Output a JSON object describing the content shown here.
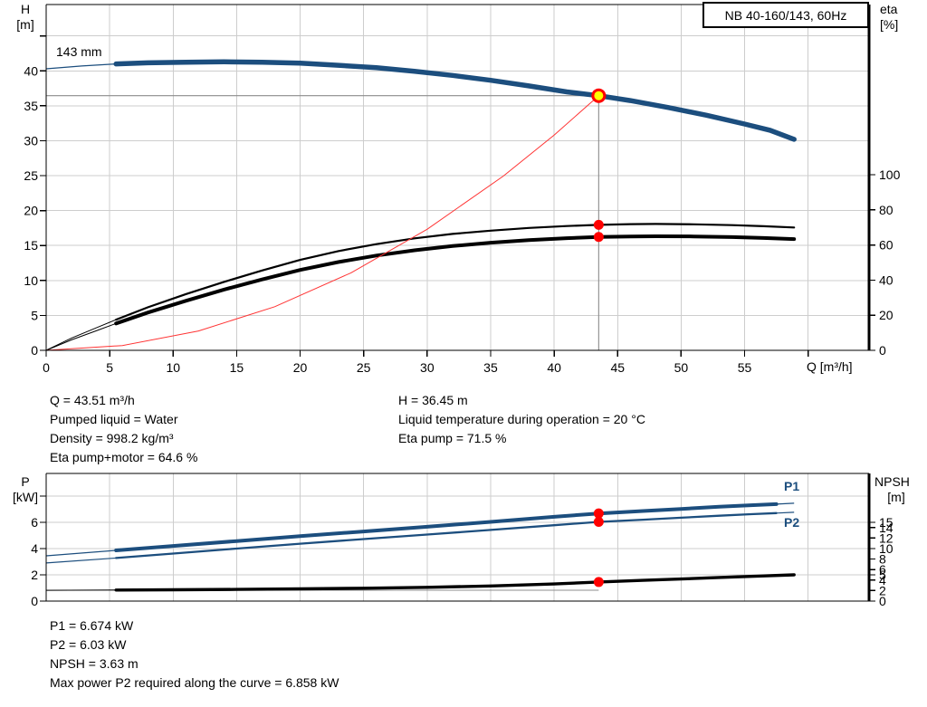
{
  "title_box": {
    "label": "NB 40-160/143, 60Hz"
  },
  "colors": {
    "blue": "#1c4e7e",
    "red": "#ff3333",
    "marker_red": "#ff0000",
    "marker_yellow": "#ffff00",
    "black": "#000000",
    "grid": "#cdcdcd",
    "crosshair": "#8c8c8c"
  },
  "chart_data": [
    {
      "type": "line",
      "name": "qh-efficiency-chart",
      "impeller_label": "143 mm",
      "x_axis": {
        "unit": "Q [m³/h]",
        "min": 0,
        "max": 64.8,
        "ticks": [
          0,
          5,
          10,
          15,
          20,
          25,
          30,
          35,
          40,
          45,
          50,
          55,
          60
        ],
        "labeled": [
          0,
          5,
          10,
          15,
          20,
          25,
          30,
          35,
          40,
          45,
          50,
          55
        ],
        "grid": [
          5,
          10,
          15,
          20,
          25,
          30,
          35,
          40,
          45,
          50,
          55,
          60
        ]
      },
      "left_axis": {
        "title": [
          "H",
          "[m]"
        ],
        "min": 0,
        "max": 49.5,
        "ticks": [
          0,
          5,
          10,
          15,
          20,
          25,
          30,
          35,
          40,
          45
        ],
        "labeled": [
          0,
          5,
          10,
          15,
          20,
          25,
          30,
          35,
          40
        ],
        "grid": [
          5,
          10,
          15,
          20,
          25,
          30,
          35,
          40,
          45
        ]
      },
      "right_axis": {
        "title": [
          "eta",
          "[%]"
        ],
        "min": 0,
        "max": 197,
        "ticks": [
          0,
          20,
          40,
          60,
          80,
          100
        ],
        "labeled": [
          0,
          20,
          40,
          60,
          80,
          100
        ],
        "grid": []
      },
      "series": [
        {
          "name": "head-curve",
          "color": "blue",
          "axis": "left",
          "thin_width": 1.2,
          "thick_width": 5.5,
          "thick_from": 5.5,
          "thick_to": 58.9,
          "points": [
            [
              0,
              40.3
            ],
            [
              2.8,
              40.7
            ],
            [
              5.5,
              41.0
            ],
            [
              8,
              41.15
            ],
            [
              11,
              41.25
            ],
            [
              14,
              41.3
            ],
            [
              17,
              41.25
            ],
            [
              20,
              41.1
            ],
            [
              23,
              40.8
            ],
            [
              26,
              40.45
            ],
            [
              29,
              39.95
            ],
            [
              32,
              39.35
            ],
            [
              35,
              38.65
            ],
            [
              38,
              37.85
            ],
            [
              41,
              37.0
            ],
            [
              43.51,
              36.45
            ],
            [
              46,
              35.75
            ],
            [
              49,
              34.75
            ],
            [
              52,
              33.65
            ],
            [
              55,
              32.4
            ],
            [
              57,
              31.5
            ],
            [
              58.9,
              30.2
            ]
          ]
        },
        {
          "name": "eta-pump-curve",
          "color": "black",
          "axis": "right",
          "thin_width": 1,
          "thick_width": 2.2,
          "thick_from": 5.5,
          "thick_to": 58.9,
          "points": [
            [
              0,
              0
            ],
            [
              2,
              7
            ],
            [
              4,
              13
            ],
            [
              5.5,
              17.5
            ],
            [
              8,
              24.5
            ],
            [
              11,
              32
            ],
            [
              14,
              39
            ],
            [
              17,
              45.5
            ],
            [
              20,
              51.5
            ],
            [
              23,
              56.5
            ],
            [
              26,
              60.5
            ],
            [
              29,
              63.8
            ],
            [
              32,
              66.3
            ],
            [
              35,
              68.2
            ],
            [
              38,
              69.7
            ],
            [
              41,
              70.8
            ],
            [
              43.51,
              71.5
            ],
            [
              46,
              71.9
            ],
            [
              48,
              72
            ],
            [
              51,
              71.8
            ],
            [
              54,
              71.3
            ],
            [
              56.5,
              70.7
            ],
            [
              58.9,
              70
            ]
          ]
        },
        {
          "name": "eta-pump-motor-curve",
          "color": "black",
          "axis": "right",
          "thin_width": 1,
          "thick_width": 4,
          "thick_from": 5.5,
          "thick_to": 58.9,
          "points": [
            [
              0,
              0
            ],
            [
              2,
              6
            ],
            [
              4,
              11.3
            ],
            [
              5.5,
              15.3
            ],
            [
              8,
              21.5
            ],
            [
              11,
              28.2
            ],
            [
              14,
              34.6
            ],
            [
              17,
              40.4
            ],
            [
              20,
              45.8
            ],
            [
              23,
              50.3
            ],
            [
              26,
              54
            ],
            [
              29,
              57
            ],
            [
              32,
              59.4
            ],
            [
              35,
              61.3
            ],
            [
              38,
              62.8
            ],
            [
              41,
              63.9
            ],
            [
              43.51,
              64.6
            ],
            [
              46,
              64.9
            ],
            [
              48,
              65
            ],
            [
              51,
              64.9
            ],
            [
              54,
              64.5
            ],
            [
              56.5,
              64
            ],
            [
              58.9,
              63.4
            ]
          ]
        },
        {
          "name": "system-curve",
          "color": "red",
          "axis": "left",
          "thin_width": 1,
          "thick_width": 0,
          "thick_from": 0,
          "thick_to": 0,
          "points": [
            [
              0,
              0
            ],
            [
              6,
              0.69
            ],
            [
              12,
              2.77
            ],
            [
              18,
              6.24
            ],
            [
              24,
              11.09
            ],
            [
              30,
              17.33
            ],
            [
              36,
              24.95
            ],
            [
              40,
              30.8
            ],
            [
              43.51,
              36.45
            ]
          ]
        }
      ],
      "reference_lines": [
        {
          "axis": "left",
          "points": [
            [
              0,
              36.45
            ],
            [
              43.51,
              36.45
            ]
          ]
        },
        {
          "axis": "left",
          "points": [
            [
              43.51,
              36.45
            ],
            [
              43.51,
              0
            ]
          ]
        }
      ],
      "markers": [
        {
          "name": "operating-point-marker",
          "q": 43.51,
          "value": 36.45,
          "axis": "left",
          "style": "ring-yellow"
        },
        {
          "name": "eta-pump-duty-dot",
          "q": 43.51,
          "value": 71.5,
          "axis": "right",
          "style": "dot"
        },
        {
          "name": "eta-pump-motor-duty-dot",
          "q": 43.51,
          "value": 64.6,
          "axis": "right",
          "style": "dot"
        }
      ],
      "operating_point": {
        "Q_m3h": 43.51,
        "H_m": 36.45,
        "eta_pump_pct": 71.5,
        "eta_pump_motor_pct": 64.6
      }
    },
    {
      "type": "line",
      "name": "power-npsh-chart",
      "x_axis": {
        "unit": "",
        "min": 0,
        "max": 64.8,
        "ticks": [],
        "labeled": [],
        "grid": [
          5,
          10,
          15,
          20,
          25,
          30,
          35,
          40,
          45,
          50,
          55,
          60
        ]
      },
      "left_axis": {
        "title": [
          "P",
          "[kW]"
        ],
        "min": 0,
        "max": 9.72,
        "ticks": [
          0,
          2,
          4,
          6,
          8
        ],
        "labeled": [
          0,
          2,
          4,
          6
        ],
        "grid": [
          2,
          4,
          6,
          8
        ]
      },
      "right_axis": {
        "title": [
          "NPSH",
          "[m]"
        ],
        "min": 0,
        "max": 24.3,
        "ticks": [
          0,
          2,
          4,
          5,
          6,
          8,
          10,
          12,
          14,
          15
        ],
        "labeled": [
          0,
          2,
          4,
          5,
          6,
          8,
          10,
          12,
          14,
          15
        ],
        "grid": []
      },
      "series": [
        {
          "name": "p1-curve",
          "label": "P1",
          "color": "blue",
          "axis": "left",
          "thin_width": 1.2,
          "thick_width": 4,
          "thick_from": 5.5,
          "thick_to": 57.5,
          "points": [
            [
              0,
              3.45
            ],
            [
              5.5,
              3.86
            ],
            [
              10,
              4.2
            ],
            [
              15,
              4.57
            ],
            [
              20,
              4.95
            ],
            [
              25,
              5.3
            ],
            [
              30,
              5.66
            ],
            [
              35,
              6.03
            ],
            [
              40,
              6.42
            ],
            [
              43.51,
              6.674
            ],
            [
              47,
              6.86
            ],
            [
              50,
              7.02
            ],
            [
              53,
              7.18
            ],
            [
              55.5,
              7.3
            ],
            [
              57.5,
              7.38
            ],
            [
              58.9,
              7.45
            ]
          ]
        },
        {
          "name": "p2-curve",
          "label": "P2",
          "color": "blue",
          "axis": "left",
          "thin_width": 1.2,
          "thick_width": 2.3,
          "thick_from": 5.5,
          "thick_to": 57.5,
          "points": [
            [
              0,
              2.9
            ],
            [
              5.5,
              3.28
            ],
            [
              10,
              3.62
            ],
            [
              15,
              4.0
            ],
            [
              20,
              4.37
            ],
            [
              25,
              4.72
            ],
            [
              30,
              5.07
            ],
            [
              35,
              5.42
            ],
            [
              40,
              5.78
            ],
            [
              43.51,
              6.03
            ],
            [
              47,
              6.2
            ],
            [
              50,
              6.35
            ],
            [
              53,
              6.5
            ],
            [
              55.5,
              6.62
            ],
            [
              57.5,
              6.7
            ],
            [
              58.9,
              6.76
            ]
          ]
        },
        {
          "name": "npsh-curve",
          "color": "black",
          "axis": "right",
          "thin_width": 1,
          "thick_width": 3.4,
          "thick_from": 5.5,
          "thick_to": 58.9,
          "points": [
            [
              0,
              2.05
            ],
            [
              5.5,
              2.1
            ],
            [
              10,
              2.15
            ],
            [
              15,
              2.22
            ],
            [
              20,
              2.32
            ],
            [
              25,
              2.45
            ],
            [
              30,
              2.62
            ],
            [
              35,
              2.88
            ],
            [
              40,
              3.25
            ],
            [
              43.51,
              3.63
            ],
            [
              47,
              3.95
            ],
            [
              50,
              4.2
            ],
            [
              53,
              4.5
            ],
            [
              56,
              4.75
            ],
            [
              58.9,
              5.0
            ]
          ]
        }
      ],
      "reference_lines": [
        {
          "axis": "right",
          "points": [
            [
              0,
              2.07
            ],
            [
              43.51,
              2.07
            ]
          ]
        }
      ],
      "markers": [
        {
          "name": "p1-duty-dot",
          "q": 43.51,
          "value": 6.674,
          "axis": "left",
          "style": "dot"
        },
        {
          "name": "p2-duty-dot",
          "q": 43.51,
          "value": 6.03,
          "axis": "left",
          "style": "dot"
        },
        {
          "name": "npsh-duty-dot",
          "q": 43.51,
          "value": 3.63,
          "axis": "right",
          "style": "dot"
        }
      ],
      "operating_point": {
        "P1_kW": 6.674,
        "P2_kW": 6.03,
        "NPSH_m": 3.63
      }
    }
  ],
  "info_block_top": {
    "col1": [
      "Q = 43.51 m³/h",
      "Pumped liquid = Water",
      "Density = 998.2 kg/m³",
      "Eta pump+motor = 64.6 %"
    ],
    "col2": [
      "H = 36.45 m",
      "Liquid temperature during operation = 20 °C",
      "Eta pump = 71.5 %"
    ]
  },
  "info_block_bottom": {
    "lines": [
      "P1 = 6.674 kW",
      "P2 = 6.03 kW",
      "NPSH = 3.63 m",
      "Max power P2 required along the curve = 6.858 kW"
    ]
  }
}
